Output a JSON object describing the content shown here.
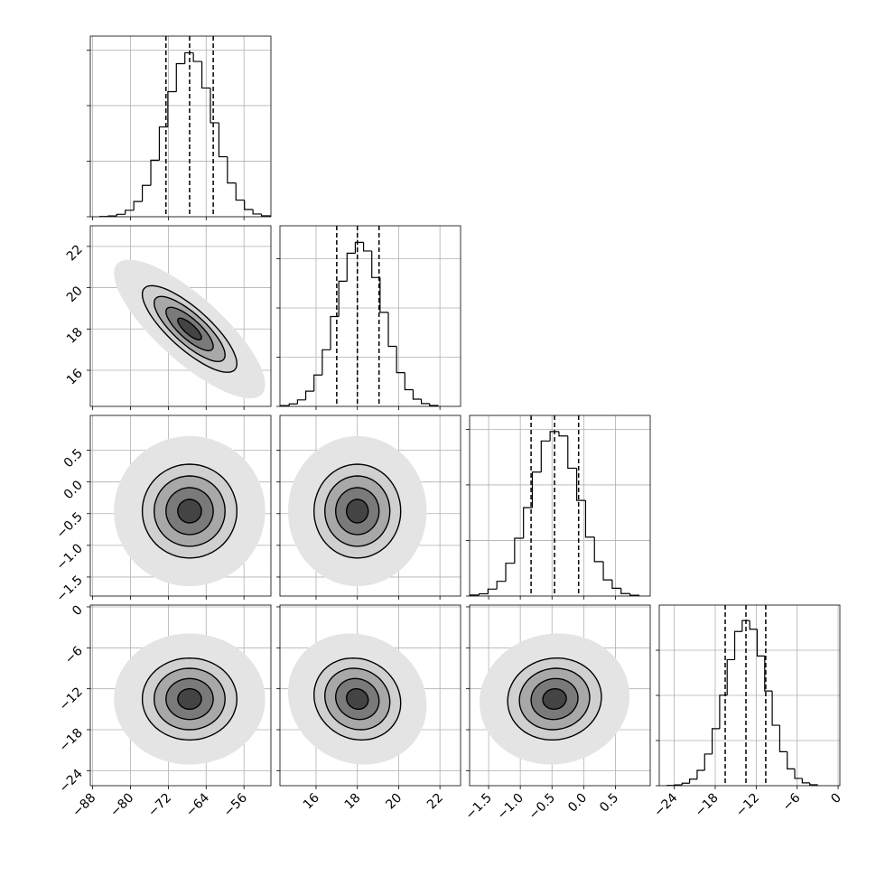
{
  "chart_data": {
    "type": "corner",
    "levels": [
      0.5,
      1,
      1.5,
      2
    ],
    "grid": true,
    "hist_color": "#000000",
    "contour_color": "#000000",
    "params": [
      {
        "lim": [
          -88.5,
          -50.3
        ],
        "mean": -67.5,
        "sd": 5.0,
        "ticks": [
          {
            "value": -88,
            "label": "−88"
          },
          {
            "value": -80,
            "label": "−80"
          },
          {
            "value": -72,
            "label": "−72"
          },
          {
            "value": -64,
            "label": "−64"
          },
          {
            "value": -56,
            "label": "−56"
          }
        ],
        "quantiles": [
          -72.5,
          -67.5,
          -62.5
        ],
        "hist": {
          "bins": [
            -86.5,
            -84.7,
            -82.9,
            -81.1,
            -79.3,
            -77.5,
            -75.7,
            -73.9,
            -72.1,
            -70.3,
            -68.5,
            -66.7,
            -64.9,
            -63.1,
            -61.3,
            -59.5,
            -57.7,
            -55.9,
            -54.1,
            -52.3,
            -50.5
          ],
          "counts": [
            4,
            15,
            44,
            117,
            274,
            565,
            1018,
            1616,
            2251,
            2754,
            2950,
            2794,
            2317,
            1691,
            1080,
            607,
            300,
            130,
            50,
            17
          ],
          "ylim": [
            0,
            3250
          ],
          "yticks": [
            0,
            1000,
            2000,
            3000
          ]
        }
      },
      {
        "lim": [
          14.25,
          23.0
        ],
        "mean": 18.0,
        "sd": 1.05,
        "ticks": [
          16,
          18,
          20,
          22
        ],
        "quantiles": [
          17.0,
          18.0,
          19.05
        ],
        "hist": {
          "bins": [
            13.9,
            14.3,
            14.7,
            15.1,
            15.5,
            15.9,
            16.3,
            16.7,
            17.1,
            17.5,
            17.9,
            18.3,
            18.7,
            19.1,
            19.5,
            19.9,
            20.3,
            20.7,
            21.1,
            21.5,
            21.9
          ],
          "counts": [
            5,
            17,
            50,
            132,
            310,
            638,
            1150,
            1826,
            2544,
            3112,
            3333,
            3157,
            2618,
            1911,
            1220,
            686,
            339,
            147,
            57,
            19
          ],
          "ylim": [
            0,
            3670
          ],
          "yticks": [
            0,
            1000,
            2000,
            3000
          ]
        }
      },
      {
        "lim": [
          -1.8,
          1.05
        ],
        "mean": -0.46,
        "sd": 0.37,
        "ticks": [
          {
            "value": -1.5,
            "label": "−1.5"
          },
          {
            "value": -1.0,
            "label": "−1.0"
          },
          {
            "value": -0.5,
            "label": "−0.5"
          },
          {
            "value": 0.0,
            "label": "0.0"
          },
          0.5
        ],
        "quantiles": [
          -0.83,
          -0.46,
          -0.08
        ],
        "hist": {
          "bins": [
            -1.93,
            -1.79,
            -1.65,
            -1.51,
            -1.37,
            -1.23,
            -1.09,
            -0.95,
            -0.81,
            -0.67,
            -0.53,
            -0.39,
            -0.25,
            -0.11,
            0.03,
            0.17,
            0.31,
            0.45,
            0.59,
            0.73,
            0.87
          ],
          "counts": [
            6,
            18,
            40,
            125,
            265,
            590,
            1040,
            1590,
            2230,
            2790,
            2960,
            2880,
            2300,
            1720,
            1060,
            620,
            290,
            140,
            45,
            15
          ],
          "ylim": [
            0,
            3250
          ],
          "yticks": [
            0,
            1000,
            2000,
            3000
          ]
        }
      },
      {
        "lim": [
          -26.2,
          0.26
        ],
        "mean": -13.5,
        "sd": 3.0,
        "ticks": [
          {
            "value": -24,
            "label": "−24"
          },
          {
            "value": -18,
            "label": "−18"
          },
          {
            "value": -12,
            "label": "−12"
          },
          {
            "value": -6,
            "label": "−6"
          },
          0
        ],
        "quantiles": [
          -16.54,
          -13.5,
          -10.6
        ],
        "hist": {
          "bins": [
            -25.05,
            -23.95,
            -22.85,
            -21.75,
            -20.65,
            -19.55,
            -18.45,
            -17.35,
            -16.25,
            -15.15,
            -14.05,
            -12.95,
            -11.85,
            -10.75,
            -9.65,
            -8.55,
            -7.45,
            -6.35,
            -5.25,
            -4.15,
            -3.05
          ],
          "counts": [
            5,
            19,
            55,
            145,
            340,
            701,
            1262,
            2004,
            2791,
            3415,
            3658,
            3465,
            2873,
            2097,
            1339,
            753,
            372,
            161,
            62,
            21
          ],
          "ylim": [
            0,
            4000
          ],
          "yticks": [
            0,
            1000,
            2000,
            3000
          ]
        }
      }
    ],
    "correlations": [
      {
        "pair": [
          0,
          1
        ],
        "rho": -0.8
      },
      {
        "pair": [
          0,
          2
        ],
        "rho": 0.0
      },
      {
        "pair": [
          0,
          3
        ],
        "rho": 0.0
      },
      {
        "pair": [
          1,
          2
        ],
        "rho": 0.0
      },
      {
        "pair": [
          1,
          3
        ],
        "rho": -0.1
      },
      {
        "pair": [
          2,
          3
        ],
        "rho": 0.05
      }
    ]
  }
}
